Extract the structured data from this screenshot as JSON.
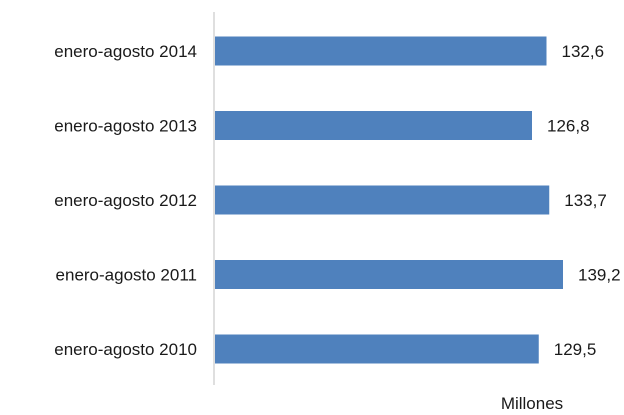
{
  "chart_data": {
    "type": "bar",
    "orientation": "horizontal",
    "categories": [
      "enero-agosto 2014",
      "enero-agosto 2013",
      "enero-agosto 2012",
      "enero-agosto 2011",
      "enero-agosto 2010"
    ],
    "values": [
      132.6,
      126.8,
      133.7,
      139.2,
      129.5
    ],
    "value_labels": [
      "132,6",
      "126,8",
      "133,7",
      "139,2",
      "129,5"
    ],
    "title": "",
    "xlabel": "Millones",
    "ylabel": "",
    "xlim": [
      0,
      140.3
    ],
    "grid": false,
    "bar_color": "#4f81bd"
  }
}
